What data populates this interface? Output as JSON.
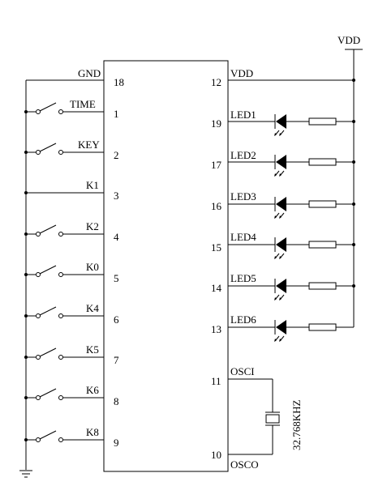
{
  "chip": {
    "left_pins": [
      {
        "num": "18",
        "label": "GND"
      },
      {
        "num": "1",
        "label": "TIME"
      },
      {
        "num": "2",
        "label": "KEY"
      },
      {
        "num": "3",
        "label": "K1"
      },
      {
        "num": "4",
        "label": "K2"
      },
      {
        "num": "5",
        "label": "K0"
      },
      {
        "num": "6",
        "label": "K4"
      },
      {
        "num": "7",
        "label": "K5"
      },
      {
        "num": "8",
        "label": "K6"
      },
      {
        "num": "9",
        "label": "K8"
      }
    ],
    "right_pins": [
      {
        "num": "12",
        "label": "VDD"
      },
      {
        "num": "19",
        "label": "LED1"
      },
      {
        "num": "17",
        "label": "LED2"
      },
      {
        "num": "16",
        "label": "LED3"
      },
      {
        "num": "15",
        "label": "LED4"
      },
      {
        "num": "14",
        "label": "LED5"
      },
      {
        "num": "13",
        "label": "LED6"
      },
      {
        "num": "11",
        "label": "OSCI"
      },
      {
        "num": "10",
        "label": "OSCO"
      }
    ]
  },
  "supply_label": "VDD",
  "crystal_label": "32.768KHZ"
}
